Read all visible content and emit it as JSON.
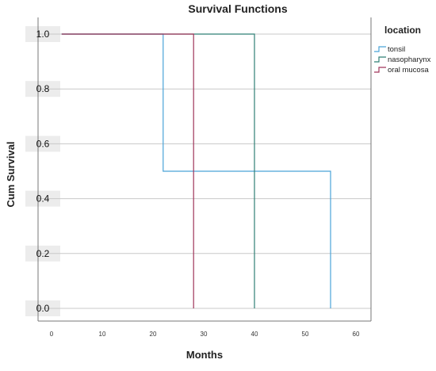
{
  "chart_data": {
    "type": "line",
    "title": "Survival Functions",
    "xlabel": "Months",
    "ylabel": "Cum Survival",
    "xlim": [
      0,
      60
    ],
    "ylim": [
      0,
      1
    ],
    "x_ticks": [
      0,
      10,
      20,
      30,
      40,
      50,
      60
    ],
    "y_ticks": [
      0.0,
      0.2,
      0.4,
      0.6,
      0.8,
      1.0
    ],
    "y_tick_labels": [
      "0.0",
      "0.2",
      "0.4",
      "0.6",
      "0.8",
      "1.0"
    ],
    "grid": true,
    "legend_title": "location",
    "legend_position": "top-right",
    "series": [
      {
        "name": "tonsil",
        "color": "#4aa3d8",
        "step_points": [
          [
            2,
            1.0
          ],
          [
            22,
            1.0
          ],
          [
            22,
            0.5
          ],
          [
            55,
            0.5
          ],
          [
            55,
            0.0
          ]
        ]
      },
      {
        "name": "nasopharynx",
        "color": "#2f7f74",
        "step_points": [
          [
            2,
            1.0
          ],
          [
            40,
            1.0
          ],
          [
            40,
            0.0
          ]
        ]
      },
      {
        "name": "oral mucosa",
        "color": "#a0355a",
        "step_points": [
          [
            2,
            1.0
          ],
          [
            28,
            1.0
          ],
          [
            28,
            0.0
          ]
        ]
      }
    ]
  }
}
